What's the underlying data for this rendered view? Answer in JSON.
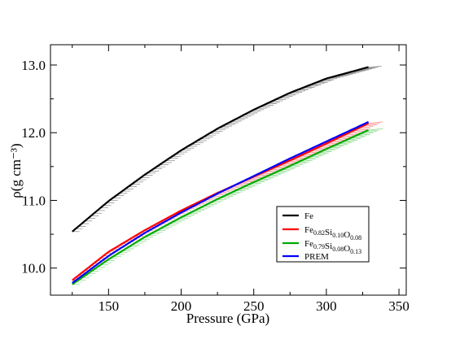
{
  "chart_data": {
    "type": "line",
    "title": "",
    "xlabel": "Pressure (GPa)",
    "ylabel": "ρ(g cm⁻³)",
    "xlim": [
      110,
      355
    ],
    "ylim": [
      9.6,
      13.3
    ],
    "xticks": [
      150,
      200,
      250,
      300,
      350
    ],
    "yticks": [
      10.0,
      11.0,
      12.0,
      13.0
    ],
    "xtick_labels": [
      "150",
      "200",
      "250",
      "300",
      "350"
    ],
    "ytick_labels": [
      "10.0",
      "11.0",
      "12.0",
      "13.0"
    ],
    "grid": false,
    "legend_position": "lower-right",
    "series": [
      {
        "name": "Fe",
        "color": "#000000",
        "x": [
          125,
          150,
          175,
          200,
          225,
          250,
          275,
          300,
          329
        ],
        "y": [
          10.54,
          10.99,
          11.38,
          11.74,
          12.06,
          12.34,
          12.59,
          12.8,
          12.97
        ],
        "shade": {
          "x_start": 130,
          "x_end": 338,
          "y_start": 10.54,
          "y_end": 12.98
        }
      },
      {
        "name": "Fe0.82Si0.10O0.08",
        "color": "#ff0000",
        "x": [
          125,
          150,
          175,
          200,
          225,
          250,
          275,
          300,
          329
        ],
        "y": [
          9.82,
          10.24,
          10.56,
          10.85,
          11.11,
          11.35,
          11.59,
          11.84,
          12.14
        ],
        "shade": {
          "x_start": 130,
          "x_end": 339,
          "y_start": 9.82,
          "y_end": 12.16
        }
      },
      {
        "name": "Fe0.79Si0.08O0.13",
        "color": "#00aa00",
        "x": [
          125,
          150,
          175,
          200,
          225,
          250,
          275,
          300,
          329
        ],
        "y": [
          9.76,
          10.13,
          10.46,
          10.75,
          11.02,
          11.27,
          11.51,
          11.76,
          12.04
        ],
        "shade": {
          "x_start": 130,
          "x_end": 339,
          "y_start": 9.76,
          "y_end": 12.06
        }
      },
      {
        "name": "PREM",
        "color": "#0000ff",
        "x": [
          125,
          150,
          175,
          200,
          225,
          250,
          275,
          300,
          329
        ],
        "y": [
          9.78,
          10.18,
          10.52,
          10.82,
          11.1,
          11.36,
          11.62,
          11.87,
          12.16
        ]
      }
    ]
  },
  "legend": {
    "items": [
      {
        "label": "Fe",
        "color": "#000000"
      },
      {
        "base": [
          "Fe",
          "Si",
          "O"
        ],
        "subs": [
          "0.82",
          "0.10",
          "0.08"
        ],
        "color": "#ff0000"
      },
      {
        "base": [
          "Fe",
          "Si",
          "O"
        ],
        "subs": [
          "0.79",
          "0.08",
          "0.13"
        ],
        "color": "#00aa00"
      },
      {
        "label": "PREM",
        "color": "#0000ff"
      }
    ]
  }
}
